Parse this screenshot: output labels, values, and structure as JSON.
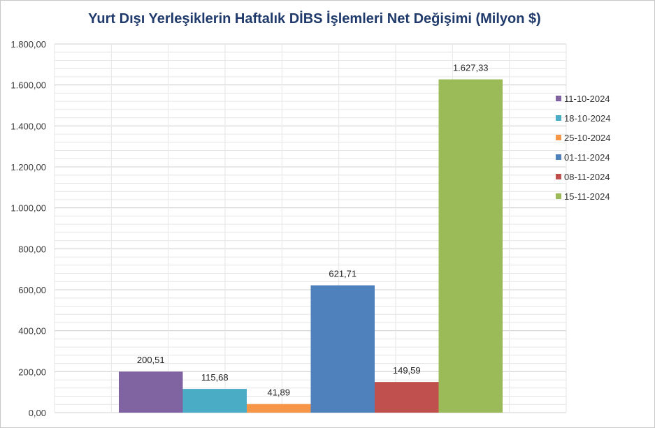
{
  "chart_data": {
    "type": "bar",
    "title": "Yurt Dışı Yerleşiklerin Haftalık DİBS İşlemleri Net Değişimi (Milyon $)",
    "series": [
      {
        "name": "11-10-2024",
        "value": 200.51,
        "label": "200,51",
        "color": "#8064a2"
      },
      {
        "name": "18-10-2024",
        "value": 115.68,
        "label": "115,68",
        "color": "#4bacc6"
      },
      {
        "name": "25-10-2024",
        "value": 41.89,
        "label": "41,89",
        "color": "#f79646"
      },
      {
        "name": "01-11-2024",
        "value": 621.71,
        "label": "621,71",
        "color": "#4f81bd"
      },
      {
        "name": "08-11-2024",
        "value": 149.59,
        "label": "149,59",
        "color": "#c0504d"
      },
      {
        "name": "15-11-2024",
        "value": 1627.33,
        "label": "1.627,33",
        "color": "#9bbb59"
      }
    ],
    "ylim": [
      0,
      1800
    ],
    "yticks": [
      {
        "value": 0,
        "label": "0,00"
      },
      {
        "value": 200,
        "label": "200,00"
      },
      {
        "value": 400,
        "label": "400,00"
      },
      {
        "value": 600,
        "label": "600,00"
      },
      {
        "value": 800,
        "label": "800,00"
      },
      {
        "value": 1000,
        "label": "1.000,00"
      },
      {
        "value": 1200,
        "label": "1.200,00"
      },
      {
        "value": 1400,
        "label": "1.400,00"
      },
      {
        "value": 1600,
        "label": "1.600,00"
      },
      {
        "value": 1800,
        "label": "1.800,00"
      }
    ],
    "grid": true,
    "legend_position": "right"
  }
}
